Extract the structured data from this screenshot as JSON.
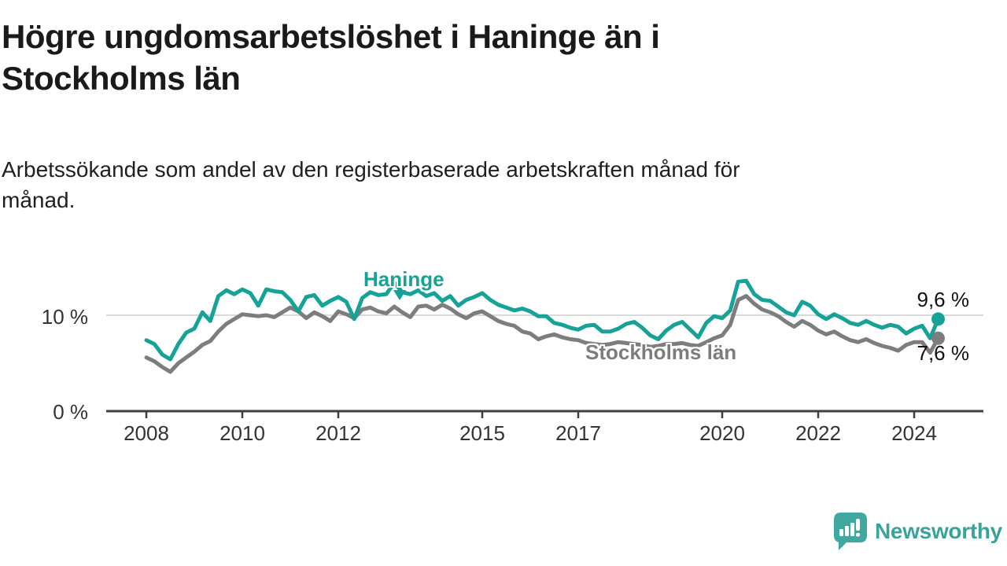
{
  "header": {
    "title": "Högre ungdomsarbetslöshet i Haninge än i\nStockholms län",
    "subtitle": "Arbetssökande som andel av den registerbaserade arbetskraften månad för\nmånad."
  },
  "footer": {
    "brand": "Newsworthy"
  },
  "colors": {
    "haninge": "#16a296",
    "stockholm": "#7d7d7d",
    "axis": "#3f3f3f",
    "gridline": "#d9d9d9",
    "brand_teal": "#38a39b"
  },
  "chart_data": {
    "type": "line",
    "title": "Högre ungdomsarbetslöshet i Haninge än i Stockholms län",
    "subtitle": "Arbetssökande som andel av den registerbaserade arbetskraften månad för månad.",
    "unit": "%",
    "x_start_year": 2008,
    "x_step_months": 2,
    "x_end_approx": 2024.5,
    "grid": "horizontal-10-only",
    "x_axis": {
      "ticks": [
        2008,
        2010,
        2012,
        2015,
        2017,
        2020,
        2022,
        2024
      ]
    },
    "y_axis": {
      "range": [
        0,
        14.5
      ],
      "ticks": [
        {
          "value": 10,
          "label": "10 %"
        },
        {
          "value": 0,
          "label": "0 %"
        }
      ]
    },
    "series": [
      {
        "name": "Haninge",
        "color": "#16a296",
        "end_value": 9.6,
        "end_label": "9,6 %",
        "values": [
          7.4,
          7.0,
          5.9,
          5.4,
          7.0,
          8.2,
          8.6,
          10.3,
          9.4,
          12.0,
          12.6,
          12.2,
          12.7,
          12.3,
          11.0,
          12.7,
          12.5,
          12.4,
          11.6,
          10.4,
          11.9,
          12.1,
          11.0,
          11.5,
          11.9,
          11.4,
          9.6,
          11.8,
          12.4,
          12.1,
          12.2,
          13.4,
          12.4,
          12.2,
          12.6,
          12.0,
          12.3,
          11.5,
          12.0,
          11.0,
          11.6,
          11.9,
          12.3,
          11.6,
          11.1,
          10.8,
          10.5,
          10.7,
          10.4,
          9.9,
          9.9,
          9.2,
          9.0,
          8.7,
          8.5,
          8.9,
          9.0,
          8.3,
          8.3,
          8.6,
          9.1,
          9.3,
          8.7,
          7.9,
          7.5,
          8.4,
          9.0,
          9.3,
          8.5,
          7.7,
          9.2,
          9.9,
          9.7,
          10.5,
          13.5,
          13.6,
          12.2,
          11.6,
          11.5,
          10.9,
          10.3,
          10.0,
          11.4,
          11.0,
          10.1,
          9.6,
          10.1,
          9.7,
          9.2,
          9.0,
          9.4,
          9.0,
          8.7,
          9.0,
          8.8,
          8.1,
          8.6,
          8.9,
          7.6,
          9.6
        ]
      },
      {
        "name": "Stockholms län",
        "color": "#7d7d7d",
        "end_value": 7.6,
        "end_label": "7,6 %",
        "values": [
          5.6,
          5.2,
          4.6,
          4.1,
          5.0,
          5.6,
          6.2,
          6.9,
          7.3,
          8.3,
          9.1,
          9.6,
          10.1,
          10.0,
          9.9,
          10.0,
          9.8,
          10.3,
          10.8,
          10.4,
          9.7,
          10.3,
          9.9,
          9.4,
          10.4,
          10.1,
          9.7,
          10.6,
          10.8,
          10.4,
          10.2,
          10.9,
          10.3,
          9.8,
          10.9,
          11.0,
          10.6,
          11.1,
          10.7,
          10.1,
          9.7,
          10.2,
          10.4,
          9.9,
          9.4,
          9.1,
          8.9,
          8.3,
          8.1,
          7.5,
          7.8,
          8.0,
          7.7,
          7.5,
          7.4,
          7.1,
          7.0,
          6.9,
          7.0,
          7.2,
          7.1,
          7.0,
          6.9,
          6.7,
          6.8,
          7.0,
          7.0,
          7.1,
          6.9,
          6.8,
          7.2,
          7.6,
          7.9,
          9.0,
          11.6,
          12.0,
          11.2,
          10.6,
          10.3,
          9.9,
          9.3,
          8.8,
          9.4,
          9.0,
          8.4,
          8.0,
          8.3,
          7.8,
          7.4,
          7.2,
          7.5,
          7.1,
          6.8,
          6.6,
          6.3,
          6.9,
          7.2,
          7.2,
          6.1,
          7.6
        ]
      }
    ]
  }
}
